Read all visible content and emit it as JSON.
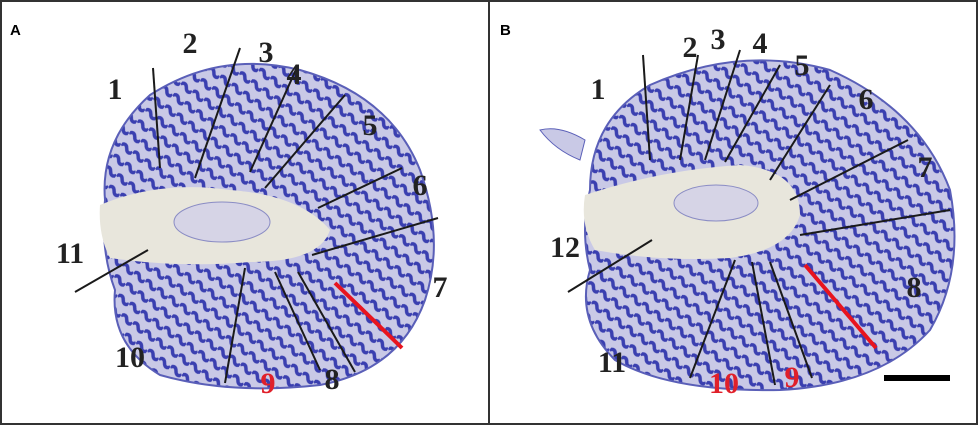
{
  "panels": [
    {
      "letter": "A",
      "labels": [
        "1",
        "2",
        "3",
        "4",
        "5",
        "6",
        "7",
        "8",
        "9",
        "10",
        "11"
      ]
    },
    {
      "letter": "B",
      "labels": [
        "1",
        "2",
        "3",
        "4",
        "5",
        "6",
        "7",
        "8",
        "9",
        "10",
        "11",
        "12"
      ]
    }
  ]
}
